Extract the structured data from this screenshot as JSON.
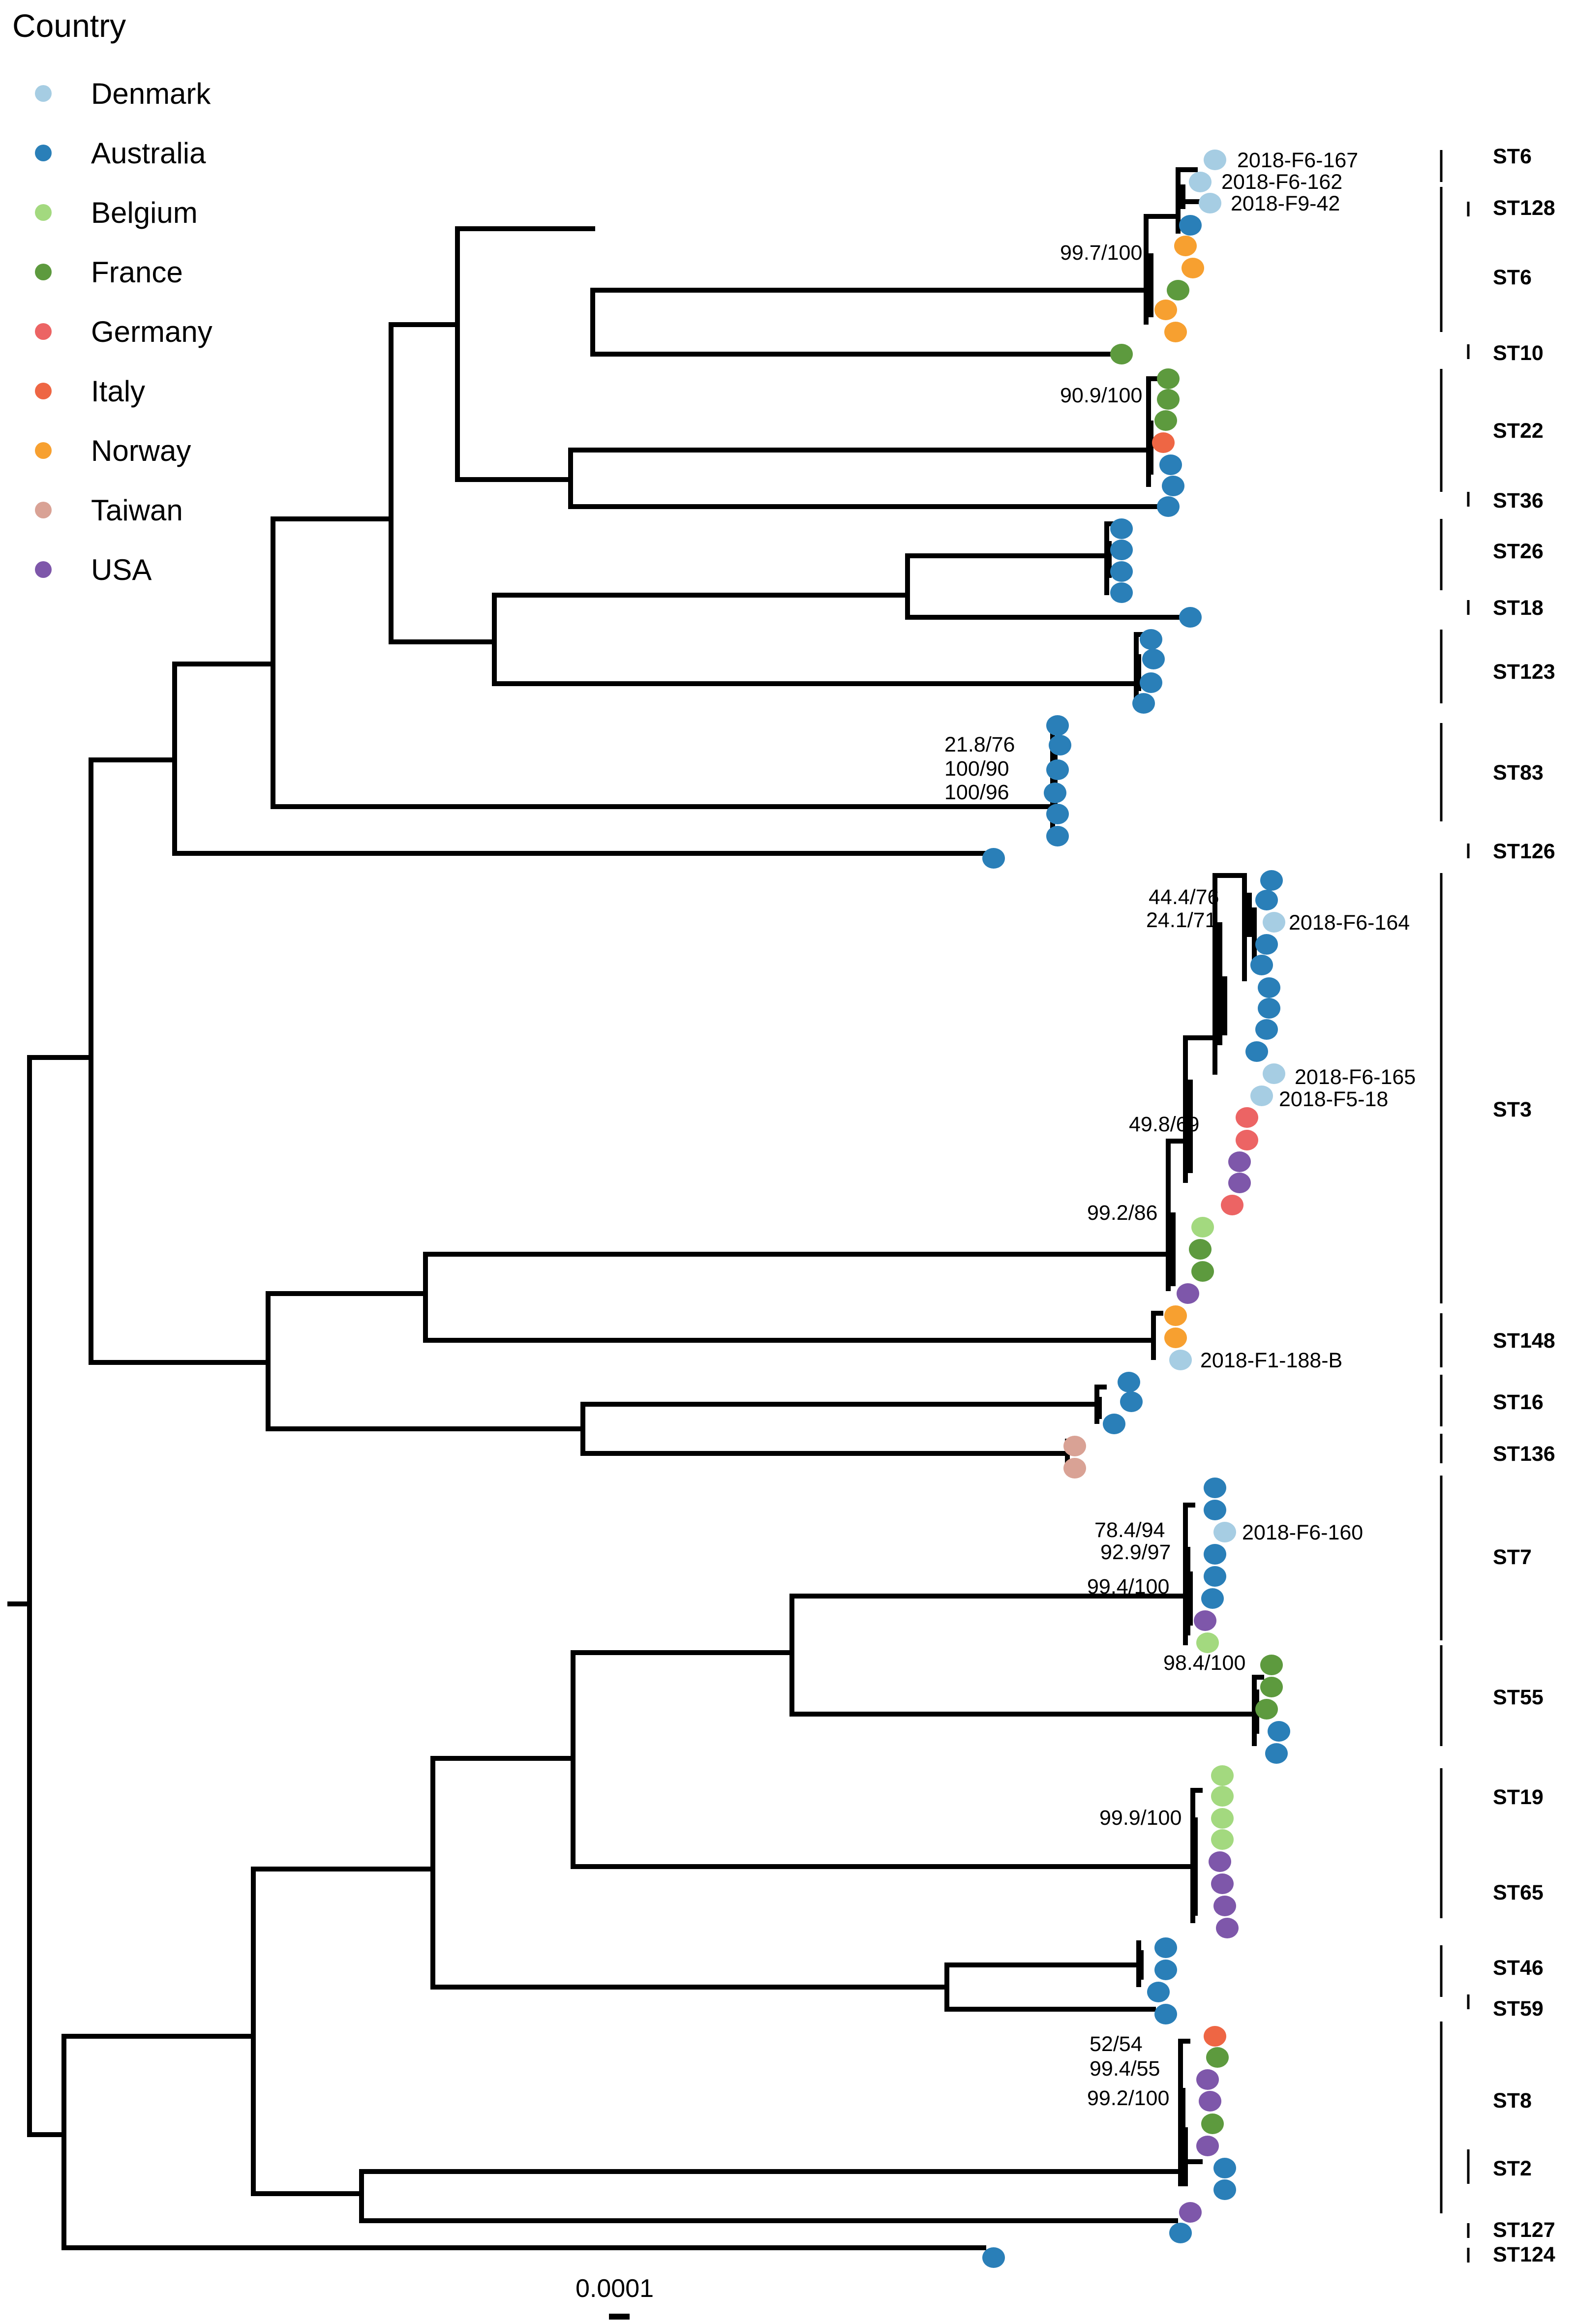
{
  "legend": {
    "title": "Country",
    "items": [
      {
        "key": "DK",
        "label": "Denmark",
        "color": "#a6cde3"
      },
      {
        "key": "AU",
        "label": "Australia",
        "color": "#2a7fb8"
      },
      {
        "key": "BE",
        "label": "Belgium",
        "color": "#a3d97f"
      },
      {
        "key": "FR",
        "label": "France",
        "color": "#5d9a3e"
      },
      {
        "key": "DE",
        "label": "Germany",
        "color": "#ec6464"
      },
      {
        "key": "IT",
        "label": "Italy",
        "color": "#ee6644"
      },
      {
        "key": "NO",
        "label": "Norway",
        "color": "#f7a030"
      },
      {
        "key": "TW",
        "label": "Taiwan",
        "color": "#d9a295"
      },
      {
        "key": "US",
        "label": "USA",
        "color": "#7e57aa"
      }
    ]
  },
  "tree": {
    "tip_labels": [
      "2018-F6-167",
      "2018-F6-162",
      "2018-F9-42",
      "2018-F6-164",
      "2018-F6-165",
      "2018-F5-18",
      "2018-F1-188-B",
      "2018-F6-160"
    ],
    "support_values": [
      "99.7/100",
      "90.9/100",
      "21.8/76",
      "100/90",
      "100/96",
      "44.4/76",
      "24.1/71",
      "49.8/69",
      "99.2/86",
      "78.4/94",
      "92.9/97",
      "99.4/100",
      "98.4/100",
      "99.9/100",
      "52/54",
      "99.4/55",
      "99.2/100"
    ],
    "sequence_types": [
      "ST6",
      "ST128",
      "ST6",
      "ST10",
      "ST22",
      "ST36",
      "ST26",
      "ST18",
      "ST123",
      "ST83",
      "ST126",
      "ST3",
      "ST148",
      "ST16",
      "ST136",
      "ST7",
      "ST55",
      "ST19",
      "ST65",
      "ST46",
      "ST59",
      "ST8",
      "ST2",
      "ST127",
      "ST124"
    ]
  },
  "scale_bar": {
    "label": "0.0001"
  }
}
